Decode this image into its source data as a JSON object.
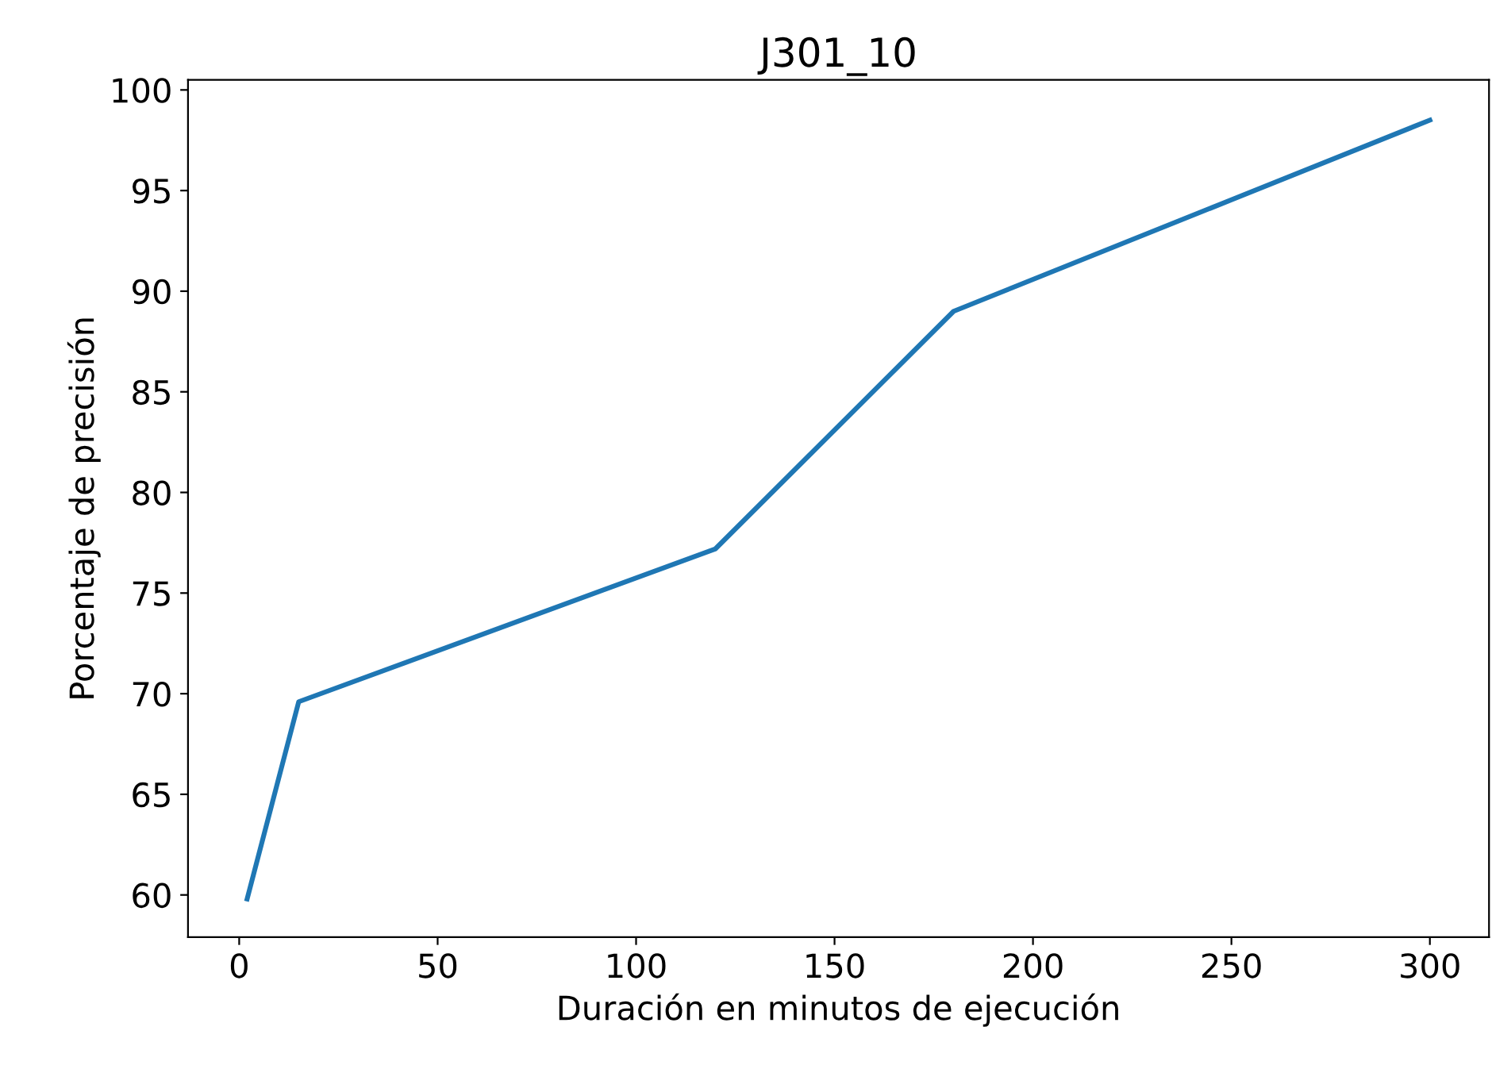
{
  "chart_data": {
    "type": "line",
    "title": "J301_10",
    "xlabel": "Duración en minutos de ejecución",
    "ylabel": "Porcentaje de precisión",
    "x": [
      2,
      15,
      120,
      180,
      300
    ],
    "series": [
      {
        "color": "#1f77b4",
        "values": [
          59.8,
          69.6,
          77.2,
          89.0,
          98.5
        ]
      }
    ],
    "xlim": [
      -12.9,
      314.9
    ],
    "ylim": [
      57.9,
      100.5
    ],
    "xticks": [
      0,
      50,
      100,
      150,
      200,
      250,
      300
    ],
    "yticks": [
      60,
      65,
      70,
      75,
      80,
      85,
      90,
      95,
      100
    ],
    "grid": false,
    "legend": false
  }
}
